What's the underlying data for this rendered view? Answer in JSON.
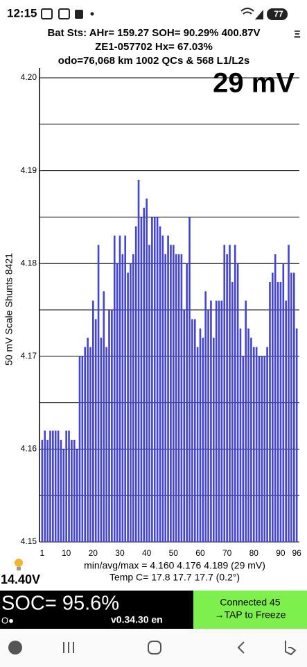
{
  "status_bar": {
    "time": "12:15",
    "battery": "77"
  },
  "header": {
    "lines": [
      "Bat Sts:  AHr= 159.27  SOH= 90.29%   400.87V",
      "ZE1-057702   Hx= 67.03%",
      "odo=76,068 km  1002 QCs & 568 L1/L2s"
    ],
    "menu": "Ξ"
  },
  "chart_data": {
    "type": "bar",
    "annotation": "29 mV",
    "y_label": "50 mV Scale   Shunts 8421",
    "color": "#4545cf",
    "x": [
      1,
      2,
      3,
      4,
      5,
      6,
      7,
      8,
      9,
      10,
      11,
      12,
      13,
      14,
      15,
      16,
      17,
      18,
      19,
      20,
      21,
      22,
      23,
      24,
      25,
      26,
      27,
      28,
      29,
      30,
      31,
      32,
      33,
      34,
      35,
      36,
      37,
      38,
      39,
      40,
      41,
      42,
      43,
      44,
      45,
      46,
      47,
      48,
      49,
      50,
      51,
      52,
      53,
      54,
      55,
      56,
      57,
      58,
      59,
      60,
      61,
      62,
      63,
      64,
      65,
      66,
      67,
      68,
      69,
      70,
      71,
      72,
      73,
      74,
      75,
      76,
      77,
      78,
      79,
      80,
      81,
      82,
      83,
      84,
      85,
      86,
      87,
      88,
      89,
      90,
      91,
      92,
      93,
      94,
      95,
      96
    ],
    "values": [
      4.161,
      4.162,
      4.161,
      4.162,
      4.162,
      4.162,
      4.162,
      4.161,
      4.16,
      4.162,
      4.162,
      4.161,
      4.161,
      4.16,
      4.17,
      4.17,
      4.171,
      4.172,
      4.171,
      4.176,
      4.174,
      4.182,
      4.172,
      4.177,
      4.171,
      4.175,
      4.175,
      4.183,
      4.18,
      4.183,
      4.181,
      4.183,
      4.179,
      4.18,
      4.181,
      4.184,
      4.189,
      4.185,
      4.186,
      4.187,
      4.182,
      4.185,
      4.185,
      4.185,
      4.184,
      4.183,
      4.181,
      4.183,
      4.182,
      4.182,
      4.181,
      4.181,
      4.181,
      4.175,
      4.18,
      4.185,
      4.174,
      4.174,
      4.171,
      4.173,
      4.172,
      4.177,
      4.175,
      4.176,
      4.172,
      4.176,
      4.176,
      4.176,
      4.182,
      4.181,
      4.182,
      4.178,
      4.182,
      4.18,
      4.173,
      4.17,
      4.176,
      4.173,
      4.172,
      4.171,
      4.171,
      4.17,
      4.17,
      4.17,
      4.171,
      4.178,
      4.179,
      4.181,
      4.178,
      4.178,
      4.18,
      4.176,
      4.182,
      4.179,
      4.179,
      4.173
    ],
    "xlim": [
      0,
      97
    ],
    "xticks": [
      1,
      10,
      20,
      30,
      40,
      50,
      60,
      70,
      80,
      90,
      96
    ],
    "ylim": [
      4.15,
      4.2
    ],
    "yticks": [
      4.15,
      4.16,
      4.17,
      4.18,
      4.19,
      {
        "value": 4.2,
        "label": "4.20"
      }
    ],
    "minor_yticks": [
      4.155,
      4.165,
      4.175,
      4.185,
      4.195
    ],
    "grid": true
  },
  "stats": {
    "minmax": "min/avg/max = 4.160 4.176 4.189  (29 mV)",
    "temp": "Temp C= 17.8  17.7  17.7  (0.2°)",
    "voltage": "14.40V"
  },
  "footer": {
    "soc": "SOC= 95.6%",
    "indicator": "O●",
    "version": "v0.34.30 en",
    "button": [
      "Connected 45",
      "→TAP to Freeze"
    ]
  }
}
